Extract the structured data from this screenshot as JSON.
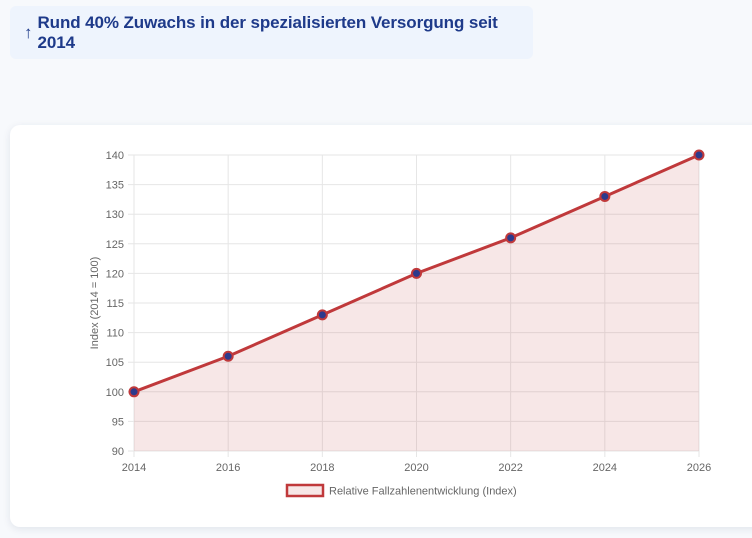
{
  "headline": {
    "arrow": "↑",
    "text": "Rund 40% Zuwachs in der spezialisierten Versorgung seit 2014"
  },
  "colors": {
    "line": "#c0393b",
    "fill": "rgba(192, 57, 59, 0.12)",
    "point_fill": "#2d3a8c",
    "grid": "#e6e6e6",
    "headline": "#1e3a8a"
  },
  "chart_data": {
    "type": "line",
    "title": "",
    "xlabel": "",
    "ylabel": "Index (2014 = 100)",
    "x": [
      "2014",
      "2016",
      "2018",
      "2020",
      "2022",
      "2024",
      "2026"
    ],
    "ylim": [
      90,
      140
    ],
    "yticks": [
      "90",
      "95",
      "100",
      "105",
      "110",
      "115",
      "120",
      "125",
      "130",
      "135",
      "140"
    ],
    "series": [
      {
        "name": "Relative Fallzahlenentwicklung (Index)",
        "values": [
          100,
          106,
          113,
          120,
          126,
          133,
          140
        ],
        "filled": true
      }
    ],
    "grid": true,
    "legend_position": "bottom"
  }
}
